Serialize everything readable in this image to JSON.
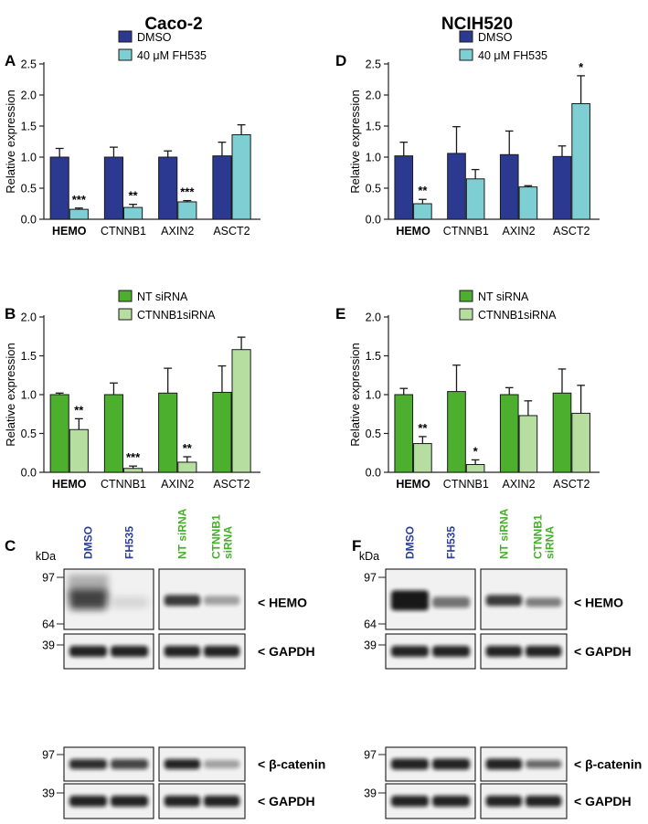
{
  "figure": {
    "col_titles": [
      "Caco-2",
      "NCIH520"
    ]
  },
  "colors": {
    "dmso": "#2b3990",
    "fh535": "#7ecfd4",
    "nt_sirna": "#4caf2e",
    "ctnnb1_sirna": "#b5dea0",
    "lane_blue": "#2b3f9e",
    "lane_green": "#43b02a"
  },
  "chart_data": [
    {
      "id": "A",
      "type": "bar",
      "panel_letter": "A",
      "ylabel": "Relative expression",
      "ylim": [
        0,
        2.5
      ],
      "yticks": [
        "0.0",
        "0.5",
        "1.0",
        "1.5",
        "2.0",
        "2.5"
      ],
      "categories": [
        "HEMO",
        "CTNNB1",
        "AXIN2",
        "ASCT2"
      ],
      "bold_category": "HEMO",
      "series": [
        {
          "name": "DMSO",
          "values": [
            1.0,
            1.0,
            1.0,
            1.02
          ],
          "errors": [
            0.14,
            0.16,
            0.1,
            0.22
          ]
        },
        {
          "name": "40 μM FH535",
          "values": [
            0.16,
            0.19,
            0.28,
            1.36
          ],
          "errors": [
            0.02,
            0.05,
            0.02,
            0.16
          ]
        }
      ],
      "significance": [
        "***",
        "**",
        "***",
        ""
      ]
    },
    {
      "id": "B",
      "type": "bar",
      "panel_letter": "B",
      "ylabel": "Relative expression",
      "ylim": [
        0,
        2.0
      ],
      "yticks": [
        "0.0",
        "0.5",
        "1.0",
        "1.5",
        "2.0"
      ],
      "categories": [
        "HEMO",
        "CTNNB1",
        "AXIN2",
        "ASCT2"
      ],
      "bold_category": "HEMO",
      "series": [
        {
          "name": "NT siRNA",
          "values": [
            1.0,
            1.0,
            1.02,
            1.03
          ],
          "errors": [
            0.02,
            0.15,
            0.32,
            0.34
          ]
        },
        {
          "name": "CTNNB1siRNA",
          "values": [
            0.55,
            0.05,
            0.13,
            1.58
          ],
          "errors": [
            0.14,
            0.03,
            0.07,
            0.16
          ]
        }
      ],
      "significance": [
        "**",
        "***",
        "**",
        ""
      ]
    },
    {
      "id": "D",
      "type": "bar",
      "panel_letter": "D",
      "ylabel": "Relative expression",
      "ylim": [
        0,
        2.5
      ],
      "yticks": [
        "0.0",
        "0.5",
        "1.0",
        "1.5",
        "2.0",
        "2.5"
      ],
      "categories": [
        "HEMO",
        "CTNNB1",
        "AXIN2",
        "ASCT2"
      ],
      "bold_category": "HEMO",
      "series": [
        {
          "name": "DMSO",
          "values": [
            1.02,
            1.06,
            1.04,
            1.01
          ],
          "errors": [
            0.22,
            0.43,
            0.38,
            0.17
          ]
        },
        {
          "name": "40 μM FH535",
          "values": [
            0.25,
            0.65,
            0.52,
            1.86
          ],
          "errors": [
            0.07,
            0.15,
            0.02,
            0.45
          ]
        }
      ],
      "significance": [
        "**",
        "",
        "",
        "*"
      ]
    },
    {
      "id": "E",
      "type": "bar",
      "panel_letter": "E",
      "ylabel": "Relative expression",
      "ylim": [
        0,
        2.0
      ],
      "yticks": [
        "0.0",
        "0.5",
        "1.0",
        "1.5",
        "2.0"
      ],
      "categories": [
        "HEMO",
        "CTNNB1",
        "AXIN2",
        "ASCT2"
      ],
      "bold_category": "HEMO",
      "series": [
        {
          "name": "NT siRNA",
          "values": [
            1.0,
            1.04,
            1.0,
            1.02
          ],
          "errors": [
            0.08,
            0.34,
            0.09,
            0.31
          ]
        },
        {
          "name": "CTNNB1siRNA",
          "values": [
            0.37,
            0.1,
            0.73,
            0.76
          ],
          "errors": [
            0.09,
            0.06,
            0.19,
            0.36
          ]
        }
      ],
      "significance": [
        "**",
        "*",
        "",
        ""
      ]
    }
  ],
  "blots": [
    {
      "id": "C",
      "panel_letter": "C",
      "lanes": [
        "DMSO",
        "FH535",
        "NT siRNA",
        "CTNNB1\nsiRNA"
      ],
      "lane_colors": [
        "blue",
        "blue",
        "green",
        "green"
      ],
      "kda_label": "kDa",
      "rows": [
        {
          "band": "< HEMO",
          "markers": [
            "97",
            "64"
          ]
        },
        {
          "band": "< GAPDH",
          "markers": [
            "39"
          ]
        },
        {
          "band": "< β-catenin",
          "markers": [
            "97"
          ]
        },
        {
          "band": "< GAPDH",
          "markers": [
            "39"
          ]
        }
      ]
    },
    {
      "id": "F",
      "panel_letter": "F",
      "lanes": [
        "DMSO",
        "FH535",
        "NT siRNA",
        "CTNNB1\nsiRNA"
      ],
      "lane_colors": [
        "blue",
        "blue",
        "green",
        "green"
      ],
      "kda_label": "kDa",
      "rows": [
        {
          "band": "< HEMO",
          "markers": [
            "97",
            "64"
          ]
        },
        {
          "band": "< GAPDH",
          "markers": [
            "39"
          ]
        },
        {
          "band": "< β-catenin",
          "markers": [
            "97"
          ]
        },
        {
          "band": "< GAPDH",
          "markers": [
            "39"
          ]
        }
      ]
    }
  ]
}
